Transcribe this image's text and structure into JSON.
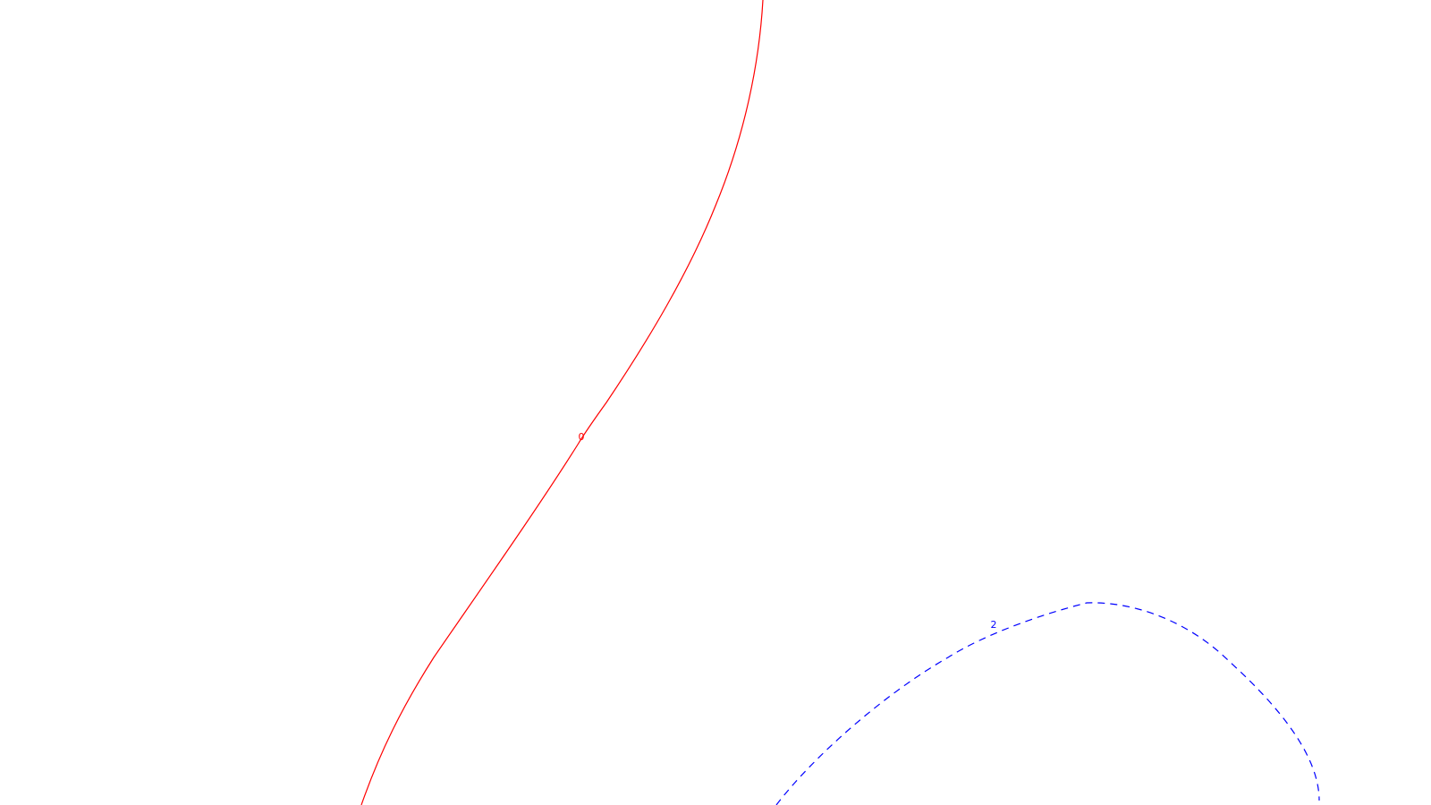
{
  "contours": [
    {
      "label": "0",
      "color": "#ff0000",
      "style": "solid"
    },
    {
      "label": "2",
      "color": "#0000ff",
      "style": "dashed"
    }
  ]
}
